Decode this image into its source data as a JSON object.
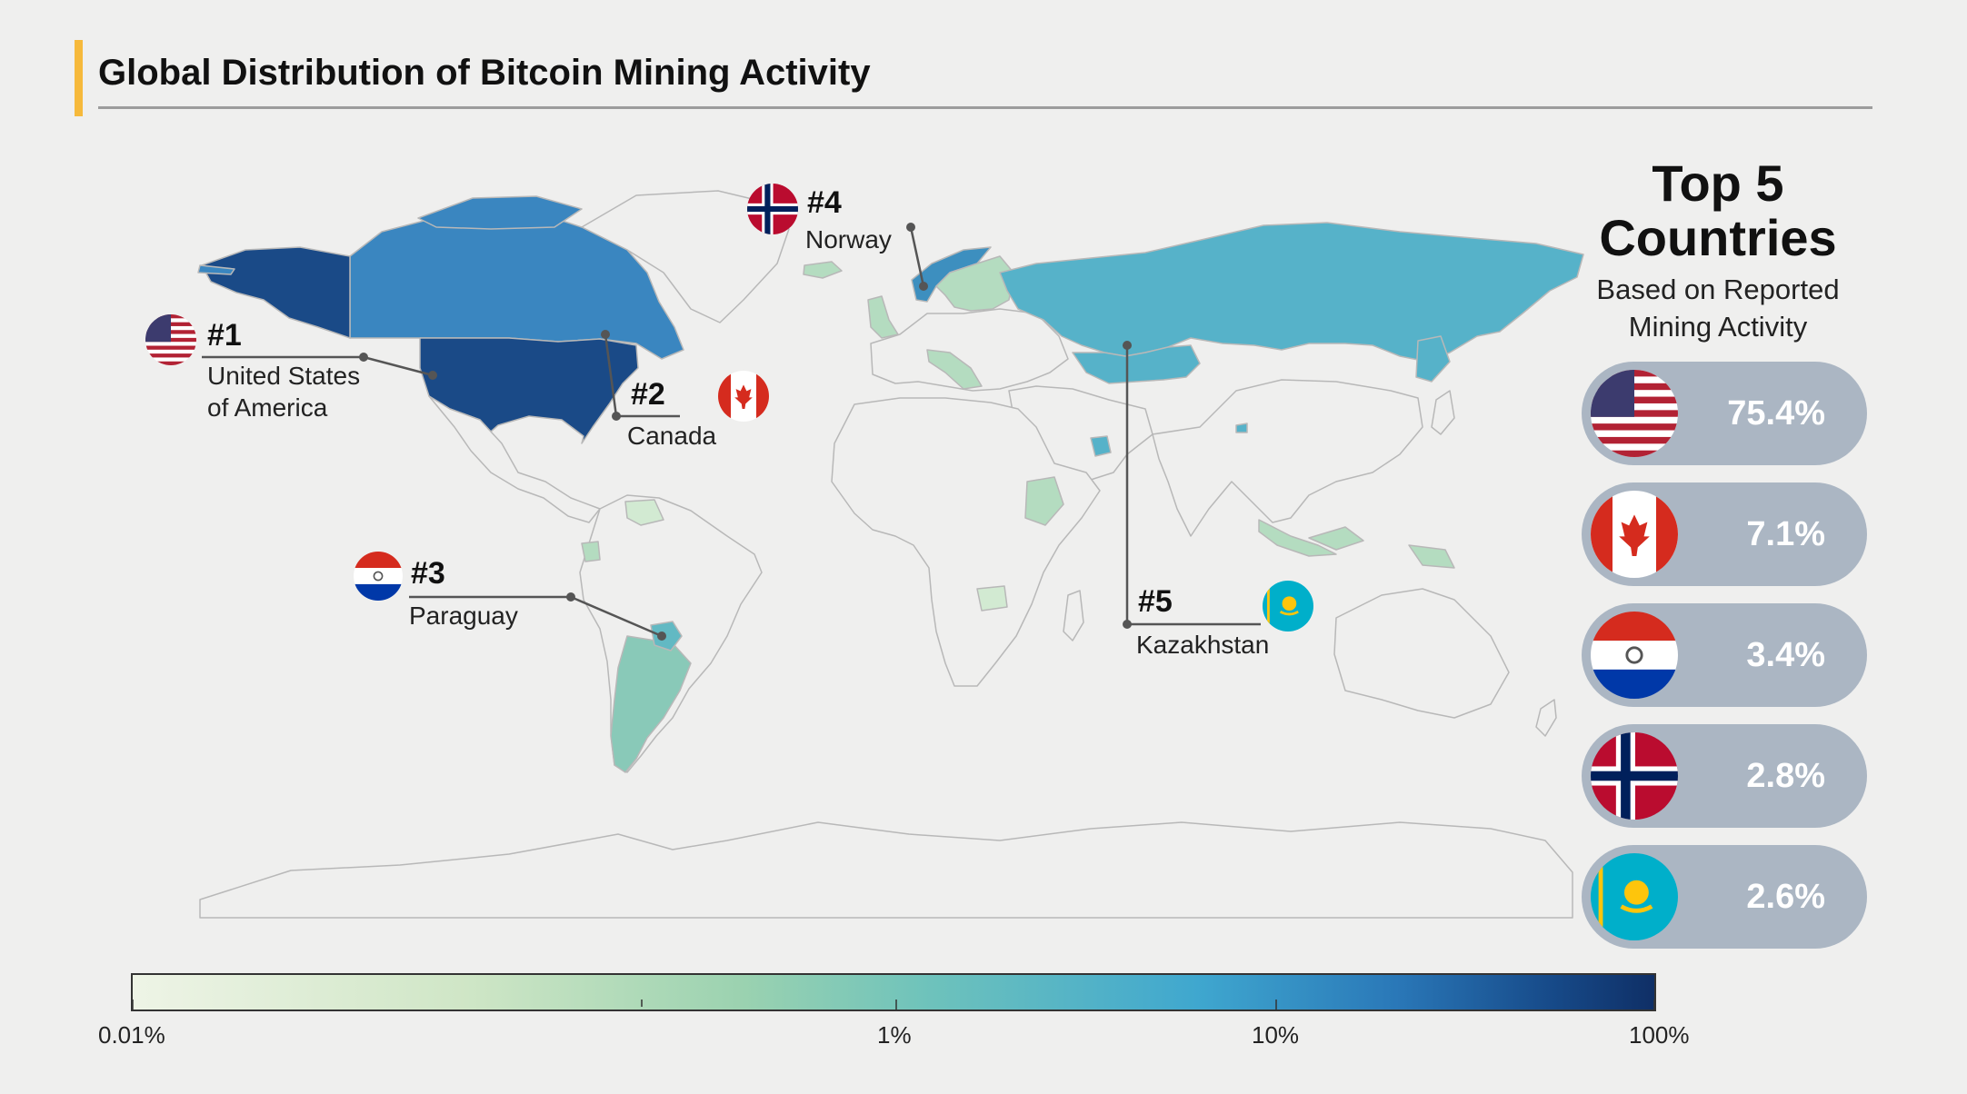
{
  "title": "Global Distribution of Bitcoin Mining Activity",
  "map_labels": [
    {
      "rank": "#1",
      "name_line1": "United States",
      "name_line2": "of America",
      "flag": "usa-flag-icon"
    },
    {
      "rank": "#2",
      "name_line1": "Canada",
      "flag": "canada-flag-icon"
    },
    {
      "rank": "#3",
      "name_line1": "Paraguay",
      "flag": "paraguay-flag-icon"
    },
    {
      "rank": "#4",
      "name_line1": "Norway",
      "flag": "norway-flag-icon"
    },
    {
      "rank": "#5",
      "name_line1": "Kazakhstan",
      "flag": "kazakhstan-flag-icon"
    }
  ],
  "sidebar": {
    "title_line1": "Top 5",
    "title_line2": "Countries",
    "subtitle_line1": "Based on Reported",
    "subtitle_line2": "Mining Activity",
    "items": [
      {
        "flag": "usa-flag-icon",
        "percent": "75.4%"
      },
      {
        "flag": "canada-flag-icon",
        "percent": "7.1%"
      },
      {
        "flag": "paraguay-flag-icon",
        "percent": "3.4%"
      },
      {
        "flag": "norway-flag-icon",
        "percent": "2.8%"
      },
      {
        "flag": "kazakhstan-flag-icon",
        "percent": "2.6%"
      }
    ]
  },
  "legend": {
    "scale": "log",
    "ticks": [
      "0.01%",
      "1%",
      "10%",
      "100%"
    ],
    "colors": [
      "#eef4e6",
      "#9bd2b0",
      "#3fa7cf",
      "#0f2f66"
    ]
  },
  "colors": {
    "accent": "#f6b93b",
    "usa": "#1a4a87",
    "canada": "#3a86c0",
    "russia_kazakhstan": "#56b2c9",
    "paraguay": "#62b9c3",
    "norway": "#3d8fbf",
    "low_activity": "#b4dcc0",
    "no_data": "#efefee",
    "pill": "#abb6c3"
  }
}
